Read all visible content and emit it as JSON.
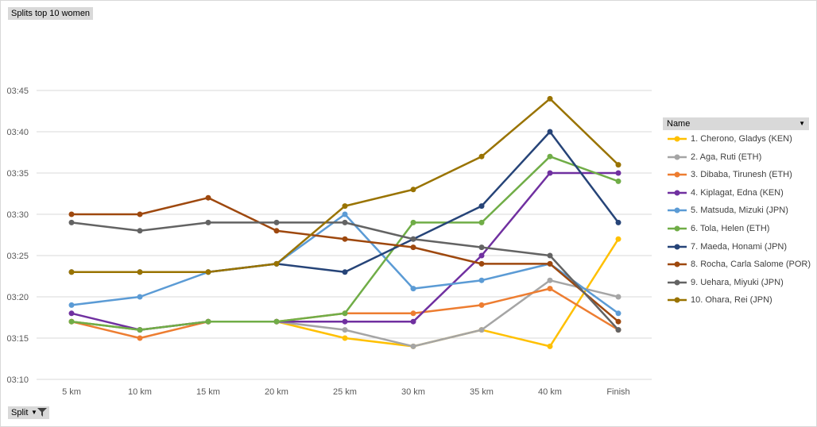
{
  "title_button": "Splits top 10 women",
  "filter_button": "Split",
  "legend_header": "Name",
  "chart_data": {
    "type": "line",
    "title": "",
    "xlabel": "",
    "ylabel": "",
    "categories": [
      "5 km",
      "10 km",
      "15 km",
      "20 km",
      "25 km",
      "30 km",
      "35 km",
      "40 km",
      "Finish"
    ],
    "y_unit": "seconds",
    "ylim": [
      190,
      230
    ],
    "yticks": [
      190,
      195,
      200,
      205,
      210,
      215,
      220,
      225
    ],
    "ytick_labels": [
      "03:10",
      "03:15",
      "03:20",
      "03:25",
      "03:30",
      "03:35",
      "03:40",
      "03:45"
    ],
    "grid": "horizontal",
    "legend_position": "right",
    "series": [
      {
        "name": "1. Cherono, Gladys (KEN)",
        "color": "#ffc000",
        "values": [
          197,
          196,
          197,
          197,
          195,
          194,
          196,
          194,
          207
        ]
      },
      {
        "name": "2. Aga, Ruti (ETH)",
        "color": "#a5a5a5",
        "values": [
          197,
          196,
          197,
          197,
          196,
          194,
          196,
          202,
          200
        ]
      },
      {
        "name": "3. Dibaba, Tirunesh (ETH)",
        "color": "#ed7d31",
        "values": [
          197,
          195,
          197,
          197,
          198,
          198,
          199,
          201,
          196
        ]
      },
      {
        "name": "4. Kiplagat, Edna (KEN)",
        "color": "#7030a0",
        "values": [
          198,
          196,
          197,
          197,
          197,
          197,
          205,
          215,
          215
        ]
      },
      {
        "name": "5. Matsuda, Mizuki (JPN)",
        "color": "#5b9bd5",
        "values": [
          199,
          200,
          203,
          204,
          210,
          201,
          202,
          204,
          198
        ]
      },
      {
        "name": "6. Tola, Helen (ETH)",
        "color": "#70ad47",
        "values": [
          197,
          196,
          197,
          197,
          198,
          209,
          209,
          217,
          214
        ]
      },
      {
        "name": "7. Maeda, Honami (JPN)",
        "color": "#264478",
        "values": [
          203,
          203,
          203,
          204,
          203,
          207,
          211,
          220,
          209
        ]
      },
      {
        "name": "8. Rocha, Carla Salome (POR)",
        "color": "#9e480e",
        "values": [
          210,
          210,
          212,
          208,
          207,
          206,
          204,
          204,
          197
        ]
      },
      {
        "name": "9. Uehara, Miyuki (JPN)",
        "color": "#636363",
        "values": [
          209,
          208,
          209,
          209,
          209,
          207,
          206,
          205,
          196
        ]
      },
      {
        "name": "10. Ohara, Rei (JPN)",
        "color": "#997300",
        "values": [
          203,
          203,
          203,
          204,
          211,
          213,
          217,
          224,
          216
        ]
      }
    ]
  }
}
